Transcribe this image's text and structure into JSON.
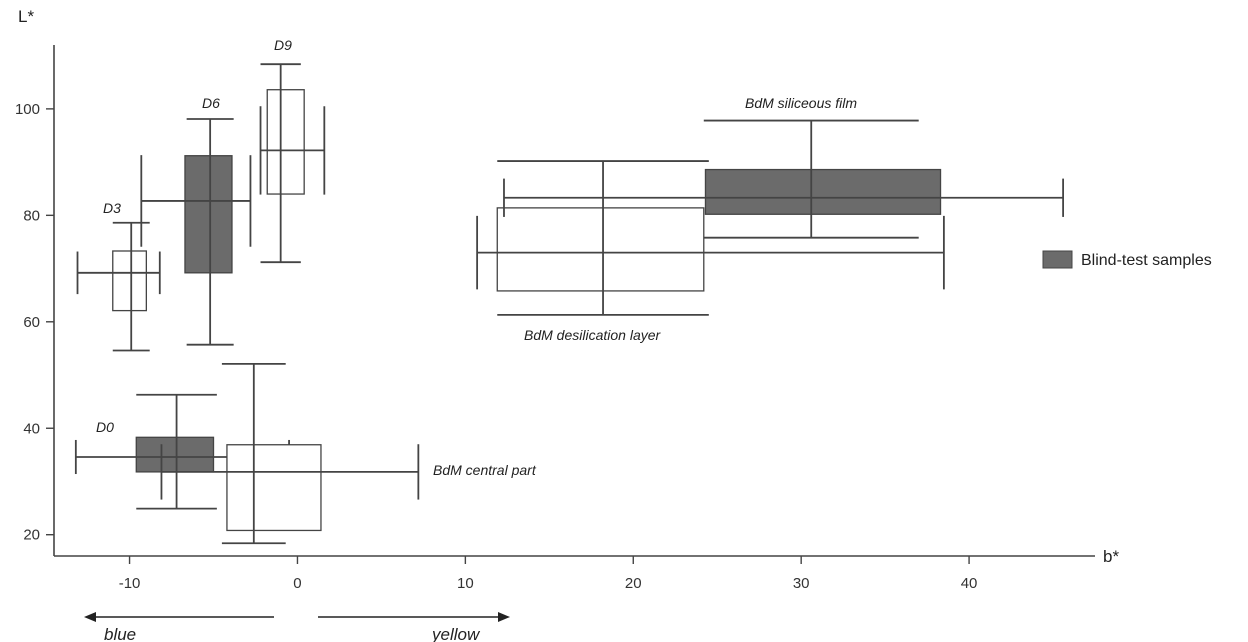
{
  "chart_data": {
    "type": "box-cross",
    "x_axis": {
      "label": "b*",
      "range": [
        -14.5,
        47.5
      ],
      "ticks": [
        -10,
        0,
        10,
        20,
        30,
        40
      ]
    },
    "y_axis": {
      "label": "L*",
      "range": [
        16,
        112
      ],
      "ticks": [
        20,
        40,
        60,
        80,
        100
      ]
    },
    "direction_labels": {
      "left": "blue",
      "right": "yellow"
    },
    "legend": {
      "label": "Blind-test samples",
      "color": "#6b6b6b",
      "placement": "right"
    },
    "colors": {
      "blind": "#6b6b6b",
      "reference": "#ffffff",
      "stroke": "#444444"
    },
    "series": [
      {
        "name": "D0",
        "kind": "blind",
        "box": {
          "x": [
            -9.6,
            -5.0
          ],
          "y": [
            31.8,
            38.3
          ]
        },
        "hbar": {
          "x": [
            -13.2,
            -0.5
          ],
          "y": 34.6,
          "cap_half": 3.2
        },
        "vbar": {
          "x": -7.2,
          "y": [
            24.9,
            46.3
          ],
          "cap_half": 2.4
        }
      },
      {
        "name": "D3",
        "kind": "reference",
        "box": {
          "x": [
            -11.0,
            -9.0
          ],
          "y": [
            62.1,
            73.3
          ]
        },
        "hbar": {
          "x": [
            -13.1,
            -8.2
          ],
          "y": 69.2,
          "cap_half": 4.0
        },
        "vbar": {
          "x": -9.9,
          "y": [
            54.6,
            78.6
          ],
          "cap_half": 1.1
        }
      },
      {
        "name": "D6",
        "kind": "blind",
        "box": {
          "x": [
            -6.7,
            -3.9
          ],
          "y": [
            69.2,
            91.2
          ]
        },
        "hbar": {
          "x": [
            -9.3,
            -2.8
          ],
          "y": 82.7,
          "cap_half": 8.6
        },
        "vbar": {
          "x": -5.2,
          "y": [
            55.7,
            98.1
          ],
          "cap_half": 1.4
        }
      },
      {
        "name": "D9",
        "kind": "reference",
        "box": {
          "x": [
            -1.8,
            0.4
          ],
          "y": [
            84.0,
            103.6
          ]
        },
        "hbar": {
          "x": [
            -2.2,
            1.6
          ],
          "y": 92.2,
          "cap_half": 8.3
        },
        "vbar": {
          "x": -1.0,
          "y": [
            71.2,
            108.4
          ],
          "cap_half": 1.2
        }
      },
      {
        "name": "BdM central part",
        "kind": "reference",
        "box": {
          "x": [
            -4.2,
            1.4
          ],
          "y": [
            20.8,
            36.9
          ]
        },
        "hbar": {
          "x": [
            -8.1,
            7.2
          ],
          "y": 31.8,
          "cap_half": 5.2
        },
        "vbar": {
          "x": -2.6,
          "y": [
            18.4,
            52.1
          ],
          "cap_half": 1.9
        }
      },
      {
        "name": "BdM desilication layer",
        "kind": "reference",
        "box": {
          "x": [
            11.9,
            24.2
          ],
          "y": [
            65.8,
            81.4
          ]
        },
        "hbar": {
          "x": [
            10.7,
            38.5
          ],
          "y": 73.0,
          "cap_half": 6.9
        },
        "vbar": {
          "x": 18.2,
          "y": [
            61.3,
            90.2
          ],
          "cap_half": 6.3
        }
      },
      {
        "name": "BdM siliceous film",
        "kind": "blind",
        "box": {
          "x": [
            24.3,
            38.3
          ],
          "y": [
            80.2,
            88.6
          ]
        },
        "hbar": {
          "x": [
            12.3,
            45.6
          ],
          "y": 83.3,
          "cap_half": 3.6
        },
        "vbar": {
          "x": 30.6,
          "y": [
            75.8,
            97.8
          ],
          "cap_half": 6.4
        }
      }
    ],
    "annotations": {
      "D0": "D0",
      "D3": "D3",
      "D6": "D6",
      "D9": "D9",
      "central": "BdM central part",
      "desilication": "BdM desilication layer",
      "siliceous": "BdM siliceous film"
    }
  }
}
